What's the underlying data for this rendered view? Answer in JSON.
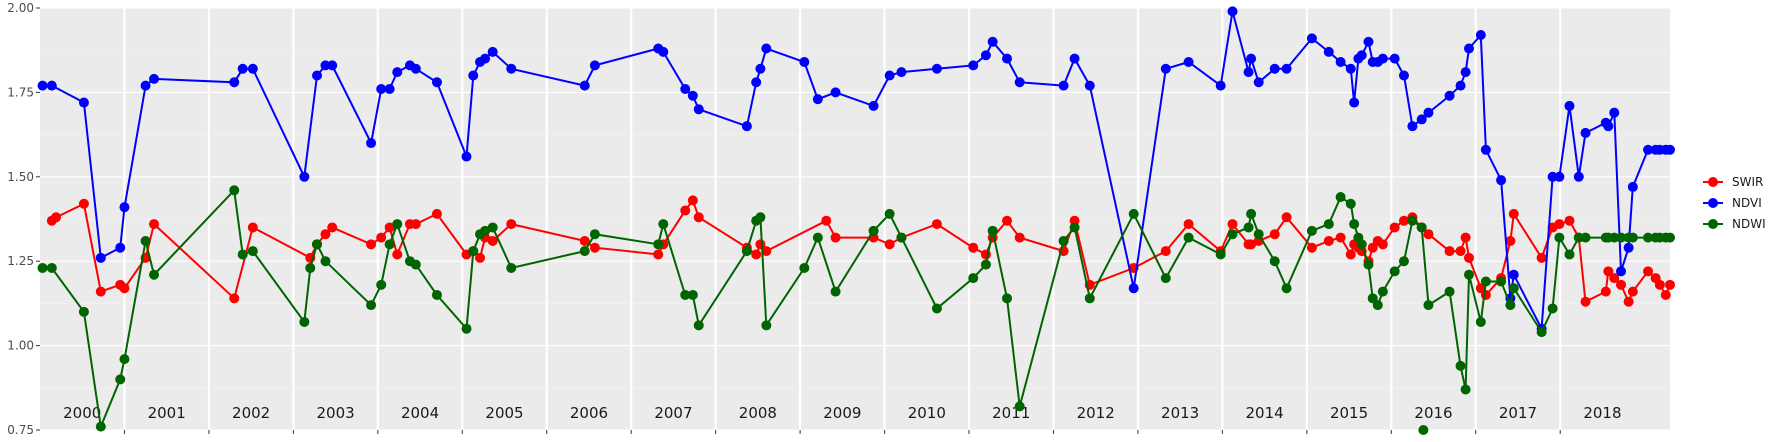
{
  "chart_data": {
    "type": "line",
    "ylim": [
      0.75,
      2.0
    ],
    "yticks": [
      "0.75",
      "1.00",
      "1.25",
      "1.50",
      "1.75",
      "2.00"
    ],
    "xlim": [
      2000.0,
      2019.3
    ],
    "year_labels": [
      "2000",
      "2001",
      "2002",
      "2003",
      "2004",
      "2005",
      "2006",
      "2007",
      "2008",
      "2009",
      "2010",
      "2011",
      "2012",
      "2013",
      "2014",
      "2015",
      "2016",
      "2017",
      "2018"
    ],
    "year_boundaries": [
      2001,
      2002,
      2003,
      2004,
      2005,
      2006,
      2007,
      2008,
      2009,
      2010,
      2011,
      2012,
      2013,
      2014,
      2015,
      2016,
      2017,
      2018
    ],
    "grid": true,
    "legend_position": "right",
    "series": [
      {
        "name": "SWIR",
        "color": "#ff0000",
        "x": [
          2000.14,
          2000.19,
          2000.52,
          2000.72,
          2000.95,
          2001.0,
          2001.25,
          2001.35,
          2002.3,
          2002.52,
          2003.2,
          2003.28,
          2003.38,
          2003.46,
          2003.92,
          2004.04,
          2004.14,
          2004.23,
          2004.38,
          2004.45,
          2004.7,
          2005.05,
          2005.13,
          2005.21,
          2005.27,
          2005.36,
          2005.58,
          2006.45,
          2006.57,
          2007.32,
          2007.38,
          2007.64,
          2007.73,
          2007.8,
          2008.37,
          2008.48,
          2008.53,
          2008.6,
          2009.31,
          2009.42,
          2009.87,
          2010.06,
          2010.2,
          2010.62,
          2011.05,
          2011.2,
          2011.28,
          2011.45,
          2011.6,
          2012.12,
          2012.25,
          2012.43,
          2012.95,
          2013.33,
          2013.6,
          2013.98,
          2014.12,
          2014.31,
          2014.34,
          2014.43,
          2014.62,
          2014.76,
          2015.06,
          2015.26,
          2015.4,
          2015.52,
          2015.56,
          2015.61,
          2015.65,
          2015.73,
          2015.78,
          2015.84,
          2015.9,
          2016.04,
          2016.15,
          2016.25,
          2016.36,
          2016.44,
          2016.69,
          2016.82,
          2016.88,
          2016.92,
          2017.06,
          2017.12,
          2017.3,
          2017.41,
          2017.45,
          2017.78,
          2017.91,
          2017.99,
          2018.11,
          2018.22,
          2018.3,
          2018.54,
          2018.57,
          2018.64,
          2018.72,
          2018.81,
          2018.86,
          2019.04,
          2019.13,
          2019.18,
          2019.25,
          2019.3
        ],
        "y": [
          1.37,
          1.38,
          1.42,
          1.16,
          1.18,
          1.17,
          1.26,
          1.36,
          1.14,
          1.35,
          1.26,
          1.3,
          1.33,
          1.35,
          1.3,
          1.32,
          1.35,
          1.27,
          1.36,
          1.36,
          1.39,
          1.27,
          1.28,
          1.26,
          1.32,
          1.31,
          1.36,
          1.31,
          1.29,
          1.27,
          1.3,
          1.4,
          1.43,
          1.38,
          1.29,
          1.27,
          1.3,
          1.28,
          1.37,
          1.32,
          1.32,
          1.3,
          1.32,
          1.36,
          1.29,
          1.27,
          1.32,
          1.37,
          1.32,
          1.28,
          1.37,
          1.18,
          1.23,
          1.28,
          1.36,
          1.28,
          1.36,
          1.3,
          1.3,
          1.31,
          1.33,
          1.38,
          1.29,
          1.31,
          1.32,
          1.27,
          1.3,
          1.29,
          1.28,
          1.25,
          1.29,
          1.31,
          1.3,
          1.35,
          1.37,
          1.38,
          1.35,
          1.33,
          1.28,
          1.28,
          1.32,
          1.26,
          1.17,
          1.15,
          1.2,
          1.31,
          1.39,
          1.26,
          1.35,
          1.36,
          1.37,
          1.32,
          1.13,
          1.16,
          1.22,
          1.2,
          1.18,
          1.13,
          1.16,
          1.22,
          1.2,
          1.18,
          1.15,
          1.18
        ],
        "x_note": ""
      },
      {
        "name": "NDVI",
        "color": "#0000ff",
        "x": [
          2000.03,
          2000.14,
          2000.52,
          2000.72,
          2000.95,
          2001.0,
          2001.25,
          2001.35,
          2002.3,
          2002.4,
          2002.52,
          2003.13,
          2003.28,
          2003.38,
          2003.46,
          2003.92,
          2004.04,
          2004.14,
          2004.23,
          2004.38,
          2004.45,
          2004.7,
          2005.05,
          2005.13,
          2005.21,
          2005.27,
          2005.36,
          2005.58,
          2006.45,
          2006.57,
          2007.32,
          2007.38,
          2007.64,
          2007.73,
          2007.8,
          2008.37,
          2008.48,
          2008.53,
          2008.6,
          2009.05,
          2009.21,
          2009.42,
          2009.87,
          2010.06,
          2010.2,
          2010.62,
          2011.05,
          2011.2,
          2011.28,
          2011.45,
          2011.6,
          2012.12,
          2012.25,
          2012.43,
          2012.95,
          2013.33,
          2013.6,
          2013.98,
          2014.12,
          2014.31,
          2014.34,
          2014.43,
          2014.62,
          2014.76,
          2015.06,
          2015.26,
          2015.4,
          2015.52,
          2015.56,
          2015.61,
          2015.65,
          2015.73,
          2015.78,
          2015.84,
          2015.9,
          2016.04,
          2016.15,
          2016.25,
          2016.36,
          2016.44,
          2016.69,
          2016.82,
          2016.88,
          2016.92,
          2017.06,
          2017.12,
          2017.3,
          2017.41,
          2017.45,
          2017.78,
          2017.91,
          2017.99,
          2018.11,
          2018.22,
          2018.3,
          2018.54,
          2018.57,
          2018.64,
          2018.72,
          2018.81,
          2018.86,
          2019.04,
          2019.13,
          2019.18,
          2019.25,
          2019.3
        ],
        "y": [
          1.77,
          1.77,
          1.72,
          1.26,
          1.29,
          1.41,
          1.77,
          1.79,
          1.78,
          1.82,
          1.82,
          1.5,
          1.8,
          1.83,
          1.83,
          1.6,
          1.76,
          1.76,
          1.81,
          1.83,
          1.82,
          1.78,
          1.56,
          1.8,
          1.84,
          1.85,
          1.87,
          1.82,
          1.77,
          1.83,
          1.88,
          1.87,
          1.76,
          1.74,
          1.7,
          1.65,
          1.78,
          1.82,
          1.88,
          1.84,
          1.73,
          1.75,
          1.71,
          1.8,
          1.81,
          1.82,
          1.83,
          1.86,
          1.9,
          1.85,
          1.78,
          1.77,
          1.85,
          1.77,
          1.17,
          1.82,
          1.84,
          1.77,
          1.99,
          1.81,
          1.85,
          1.78,
          1.82,
          1.82,
          1.91,
          1.87,
          1.84,
          1.82,
          1.72,
          1.85,
          1.86,
          1.9,
          1.84,
          1.84,
          1.85,
          1.85,
          1.8,
          1.65,
          1.67,
          1.69,
          1.74,
          1.77,
          1.81,
          1.88,
          1.92,
          1.58,
          1.49,
          1.14,
          1.21,
          1.05,
          1.5,
          1.5,
          1.71,
          1.5,
          1.63,
          1.66,
          1.65,
          1.69,
          1.22,
          1.29,
          1.47,
          1.58,
          1.58,
          1.58,
          1.58,
          1.58
        ],
        "x_note": ""
      },
      {
        "name": "NDWI",
        "color": "#006400",
        "x": [
          2000.03,
          2000.14,
          2000.52,
          2000.72,
          2000.95,
          2001.0,
          2001.25,
          2001.35,
          2002.3,
          2002.4,
          2002.52,
          2003.13,
          2003.2,
          2003.28,
          2003.38,
          2003.92,
          2004.04,
          2004.14,
          2004.23,
          2004.38,
          2004.45,
          2004.7,
          2005.05,
          2005.13,
          2005.21,
          2005.27,
          2005.36,
          2005.58,
          2006.45,
          2006.57,
          2007.32,
          2007.38,
          2007.64,
          2007.73,
          2007.8,
          2008.37,
          2008.48,
          2008.53,
          2008.6,
          2009.05,
          2009.21,
          2009.42,
          2009.87,
          2010.06,
          2010.2,
          2010.62,
          2011.05,
          2011.2,
          2011.28,
          2011.45,
          2011.6,
          2012.12,
          2012.25,
          2012.43,
          2012.95,
          2013.33,
          2013.6,
          2013.98,
          2014.12,
          2014.31,
          2014.34,
          2014.43,
          2014.62,
          2014.76,
          2015.06,
          2015.26,
          2015.4,
          2015.52,
          2015.56,
          2015.61,
          2015.65,
          2015.73,
          2015.78,
          2015.84,
          2015.9,
          2016.04,
          2016.15,
          2016.25,
          2016.36,
          2016.44,
          2016.69,
          2016.82,
          2016.88,
          2016.92,
          2017.06,
          2017.12,
          2017.3,
          2017.41,
          2017.45,
          2017.78,
          2017.91,
          2017.99,
          2018.11,
          2018.22,
          2018.3,
          2018.54,
          2018.57,
          2018.64,
          2018.72,
          2018.81,
          2018.86,
          2019.04,
          2019.13,
          2019.18,
          2019.25,
          2019.3
        ],
        "y": [
          1.23,
          1.23,
          1.1,
          0.76,
          0.9,
          0.96,
          1.31,
          1.21,
          1.46,
          1.27,
          1.28,
          1.07,
          1.23,
          1.3,
          1.25,
          1.12,
          1.18,
          1.3,
          1.36,
          1.25,
          1.24,
          1.15,
          1.05,
          1.28,
          1.33,
          1.34,
          1.35,
          1.23,
          1.28,
          1.33,
          1.3,
          1.36,
          1.15,
          1.15,
          1.06,
          1.28,
          1.37,
          1.38,
          1.06,
          1.23,
          1.32,
          1.16,
          1.34,
          1.39,
          1.32,
          1.11,
          1.2,
          1.24,
          1.34,
          1.14,
          0.82,
          1.31,
          1.35,
          1.14,
          1.39,
          1.2,
          1.32,
          1.27,
          1.33,
          1.35,
          1.39,
          1.33,
          1.25,
          1.17,
          1.34,
          1.36,
          1.44,
          1.42,
          1.36,
          1.32,
          1.3,
          1.24,
          1.14,
          1.12,
          1.16,
          1.22,
          1.25,
          1.37,
          1.35,
          1.12,
          1.16,
          0.94,
          0.87,
          1.21,
          1.07,
          1.19,
          1.19,
          1.12,
          1.17,
          1.04,
          1.11,
          1.32,
          1.27,
          1.32,
          1.32,
          1.32,
          1.32,
          1.32,
          1.32,
          1.32,
          1.32,
          1.32,
          1.32,
          1.32,
          1.32,
          1.32
        ],
        "x_note": ""
      }
    ],
    "extra_points": [
      {
        "series": "NDWI",
        "x": 2016.38,
        "y": 0.75
      }
    ]
  }
}
